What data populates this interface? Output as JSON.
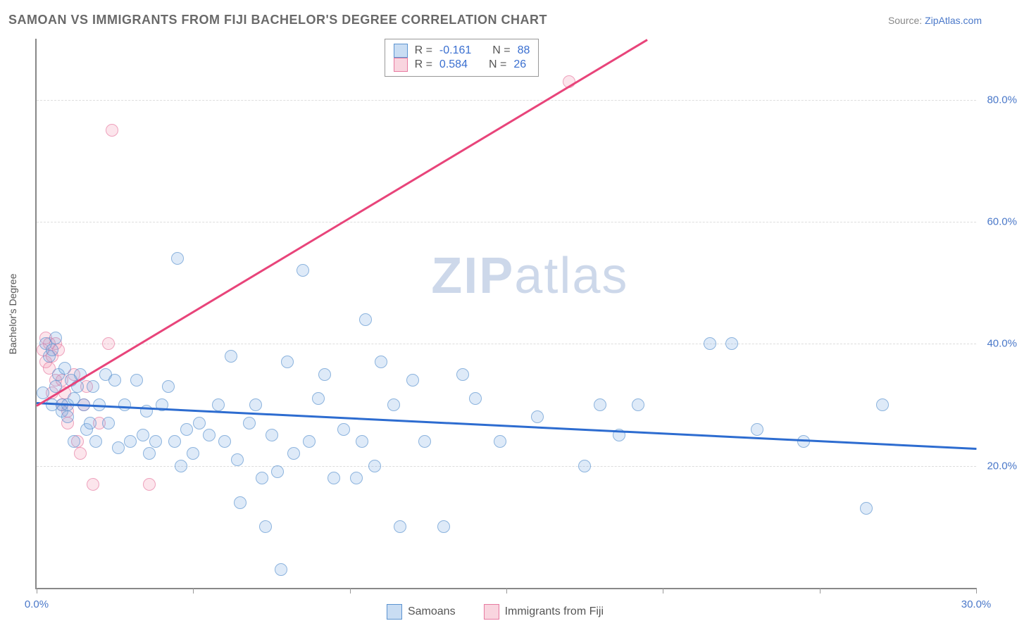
{
  "header": {
    "title": "SAMOAN VS IMMIGRANTS FROM FIJI BACHELOR'S DEGREE CORRELATION CHART",
    "source_prefix": "Source: ",
    "source_link": "ZipAtlas.com"
  },
  "chart": {
    "type": "scatter",
    "y_axis_label": "Bachelor's Degree",
    "xlim": [
      0,
      30
    ],
    "ylim": [
      0,
      90
    ],
    "xtick_positions": [
      0,
      5,
      10,
      15,
      20,
      25,
      30
    ],
    "xtick_labels": {
      "0": "0.0%",
      "30": "30.0%"
    },
    "ytick_positions": [
      20,
      40,
      60,
      80
    ],
    "ytick_labels": {
      "20": "20.0%",
      "40": "40.0%",
      "60": "60.0%",
      "80": "80.0%"
    },
    "grid_color": "#dddddd",
    "axis_color": "#888888",
    "label_color": "#4a78c9",
    "background_color": "#ffffff",
    "watermark_text_bold": "ZIP",
    "watermark_text_rest": "atlas",
    "watermark_color": "#cdd8ea",
    "marker_radius": 9,
    "series": {
      "samoans": {
        "label": "Samoans",
        "color_fill": "rgba(120,170,225,0.35)",
        "color_border": "#5b93d0",
        "r_value": "-0.161",
        "n_value": "88",
        "trend": {
          "x1": 0,
          "y1": 30.5,
          "x2": 30,
          "y2": 23,
          "color": "#2d6cd0",
          "width": 3
        },
        "points": [
          [
            0.2,
            32
          ],
          [
            0.3,
            40
          ],
          [
            0.4,
            38
          ],
          [
            0.5,
            39
          ],
          [
            0.5,
            30
          ],
          [
            0.6,
            41
          ],
          [
            0.6,
            33
          ],
          [
            0.7,
            35
          ],
          [
            0.8,
            30
          ],
          [
            0.8,
            29
          ],
          [
            0.9,
            36
          ],
          [
            1.0,
            30
          ],
          [
            1.0,
            28
          ],
          [
            1.1,
            34
          ],
          [
            1.2,
            31
          ],
          [
            1.2,
            24
          ],
          [
            1.3,
            33
          ],
          [
            1.4,
            35
          ],
          [
            1.5,
            30
          ],
          [
            1.6,
            26
          ],
          [
            1.7,
            27
          ],
          [
            1.8,
            33
          ],
          [
            1.9,
            24
          ],
          [
            2.0,
            30
          ],
          [
            2.2,
            35
          ],
          [
            2.3,
            27
          ],
          [
            2.5,
            34
          ],
          [
            2.6,
            23
          ],
          [
            2.8,
            30
          ],
          [
            3.0,
            24
          ],
          [
            3.2,
            34
          ],
          [
            3.4,
            25
          ],
          [
            3.5,
            29
          ],
          [
            3.6,
            22
          ],
          [
            3.8,
            24
          ],
          [
            4.0,
            30
          ],
          [
            4.2,
            33
          ],
          [
            4.4,
            24
          ],
          [
            4.5,
            54
          ],
          [
            4.6,
            20
          ],
          [
            4.8,
            26
          ],
          [
            5.0,
            22
          ],
          [
            5.2,
            27
          ],
          [
            5.5,
            25
          ],
          [
            5.8,
            30
          ],
          [
            6.0,
            24
          ],
          [
            6.2,
            38
          ],
          [
            6.4,
            21
          ],
          [
            6.5,
            14
          ],
          [
            6.8,
            27
          ],
          [
            7.0,
            30
          ],
          [
            7.2,
            18
          ],
          [
            7.3,
            10
          ],
          [
            7.5,
            25
          ],
          [
            7.7,
            19
          ],
          [
            7.8,
            3
          ],
          [
            8.0,
            37
          ],
          [
            8.2,
            22
          ],
          [
            8.5,
            52
          ],
          [
            8.7,
            24
          ],
          [
            9.0,
            31
          ],
          [
            9.2,
            35
          ],
          [
            9.5,
            18
          ],
          [
            9.8,
            26
          ],
          [
            10.2,
            18
          ],
          [
            10.4,
            24
          ],
          [
            10.5,
            44
          ],
          [
            10.8,
            20
          ],
          [
            11.0,
            37
          ],
          [
            11.4,
            30
          ],
          [
            11.6,
            10
          ],
          [
            12.0,
            34
          ],
          [
            12.4,
            24
          ],
          [
            13.0,
            10
          ],
          [
            13.6,
            35
          ],
          [
            14.0,
            31
          ],
          [
            14.8,
            24
          ],
          [
            16.0,
            28
          ],
          [
            17.5,
            20
          ],
          [
            18.0,
            30
          ],
          [
            18.6,
            25
          ],
          [
            19.2,
            30
          ],
          [
            21.5,
            40
          ],
          [
            22.2,
            40
          ],
          [
            23.0,
            26
          ],
          [
            24.5,
            24
          ],
          [
            26.5,
            13
          ],
          [
            27.0,
            30
          ]
        ]
      },
      "fiji": {
        "label": "Immigrants from Fiji",
        "color_fill": "rgba(240,150,175,0.35)",
        "color_border": "#e77aa0",
        "r_value": "0.584",
        "n_value": "26",
        "trend": {
          "x1": 0,
          "y1": 30,
          "x2": 19.5,
          "y2": 90,
          "color": "#e8447a",
          "width": 3
        },
        "points": [
          [
            0.2,
            39
          ],
          [
            0.3,
            41
          ],
          [
            0.3,
            37
          ],
          [
            0.4,
            40
          ],
          [
            0.4,
            36
          ],
          [
            0.5,
            38
          ],
          [
            0.5,
            32
          ],
          [
            0.6,
            40
          ],
          [
            0.6,
            34
          ],
          [
            0.7,
            39
          ],
          [
            0.8,
            34
          ],
          [
            0.8,
            30
          ],
          [
            0.9,
            32
          ],
          [
            1.0,
            27
          ],
          [
            1.0,
            29
          ],
          [
            1.2,
            35
          ],
          [
            1.3,
            24
          ],
          [
            1.4,
            22
          ],
          [
            1.5,
            30
          ],
          [
            1.6,
            33
          ],
          [
            1.8,
            17
          ],
          [
            2.0,
            27
          ],
          [
            2.3,
            40
          ],
          [
            2.4,
            75
          ],
          [
            3.6,
            17
          ],
          [
            17.0,
            83
          ]
        ]
      }
    }
  },
  "stats_box": {
    "r_label": "R =",
    "n_label": "N ="
  },
  "legend": {
    "s1": "Samoans",
    "s2": "Immigrants from Fiji"
  }
}
